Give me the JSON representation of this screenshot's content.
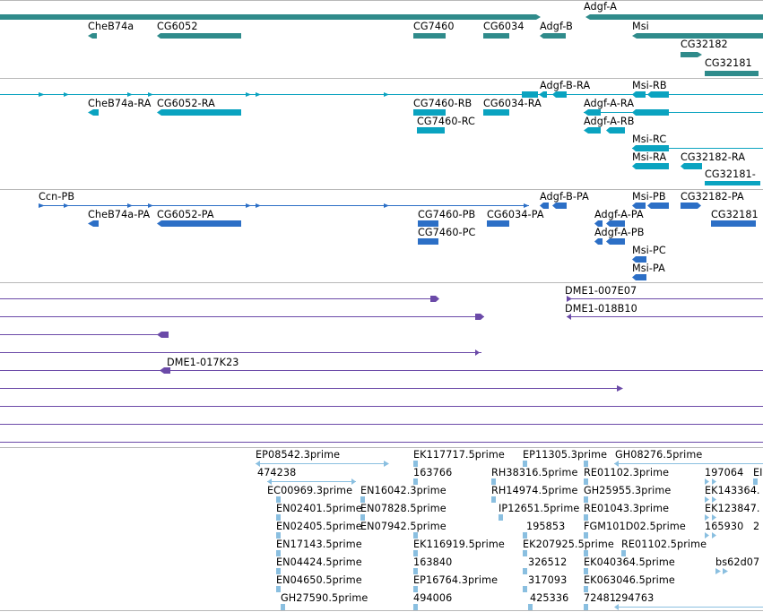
{
  "colors": {
    "gene": "#2f8b8b",
    "transcript": "#0aa3c0",
    "protein": "#2c6fc6",
    "clone": "#6b4aa8",
    "est": "#8abfe0",
    "divider": "#b8b8b8"
  },
  "tracks": {
    "genes": {
      "labels": [
        "Adgf-A",
        "CheB74a",
        "CG6052",
        "CG7460",
        "CG6034",
        "Adgf-B",
        "Msi",
        "CG32182",
        "CG32181"
      ]
    },
    "transcripts": {
      "labels": [
        "Adgf-B-RA",
        "Msi-RB",
        "CheB74a-RA",
        "CG6052-RA",
        "CG7460-RB",
        "CG6034-RA",
        "Adgf-A-RA",
        "Adgf-A-RB",
        "CG7460-RC",
        "Msi-RC",
        "Msi-RA",
        "CG32182-RA",
        "CG32181-"
      ]
    },
    "proteins": {
      "labels": [
        "Ccn-PB",
        "Adgf-B-PA",
        "Msi-PB",
        "CG32182-PA",
        "CheB74a-PA",
        "CG6052-PA",
        "CG7460-PB",
        "CG6034-PA",
        "Adgf-A-PA",
        "CG32181",
        "CG7460-PC",
        "Adgf-A-PB",
        "Msi-PC",
        "Msi-PA"
      ]
    },
    "clones": {
      "labels": [
        "DME1-007E07",
        "DME1-018B10",
        "DME1-017K23"
      ]
    },
    "ests": {
      "labels": [
        "EP08542.3prime",
        "EK117717.5prime",
        "EP11305.3prime",
        "GH08276.5prime",
        "474238",
        "163766",
        "RH38316.5prime",
        "RE01102.3prime",
        "197064",
        "EI",
        "EC00969.3prime",
        "EN16042.3prime",
        "RH14974.5prime",
        "GH25955.3prime",
        "EK143364.",
        "EN02401.5prime",
        "EN07828.5prime",
        "IP12651.5prime",
        "RE01043.3prime",
        "EK123847.",
        "EN02405.5prime",
        "EN07942.5prime",
        "195853",
        "FGM101D02.5prime",
        "165930",
        "2",
        "EN17143.5prime",
        "EK116919.5prime",
        "EK207925.5prime",
        "RE01102.5prime",
        "EN04424.5prime",
        "163840",
        "326512",
        "EK040364.5prime",
        "bs62d07",
        "EN04650.5prime",
        "EP16764.3prime",
        "317093",
        "EK063046.5prime",
        "GH27590.5prime",
        "494006",
        "425336",
        "72481",
        "294763"
      ]
    }
  }
}
